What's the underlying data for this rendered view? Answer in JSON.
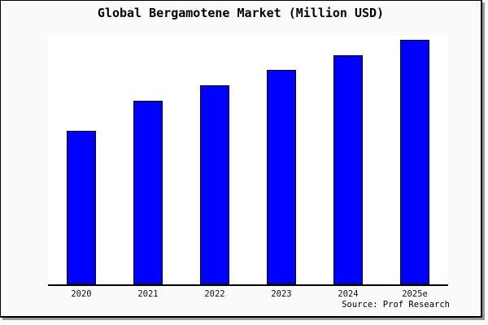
{
  "page": {
    "title": "Global Bergamotene Market (Million USD)",
    "source_note": "Source: Prof Research"
  },
  "chart_data": {
    "type": "bar",
    "title": "Global Bergamotene Market (Million USD)",
    "categories": [
      "2020",
      "2021",
      "2022",
      "2023",
      "2024",
      "2025e"
    ],
    "values": [
      189,
      226,
      245,
      264,
      282,
      301
    ],
    "values_unit": "relative bar heights in px; no y-axis scale, gridlines or data labels are shown in the chart",
    "values_pct_of_max": [
      62.8,
      75.1,
      81.4,
      87.7,
      93.7,
      100
    ],
    "xlabel": "",
    "ylabel": "",
    "grid": false,
    "legend": null,
    "axes_shown": [
      "bottom"
    ],
    "source": "Source: Prof Research",
    "colors": {
      "bar_fill": "#0000fe",
      "bar_edge": "#000000",
      "plot_background": "#ffffff",
      "outer_background": "#fafafa",
      "frame_border": "#000000",
      "frame_shadow": "#999999",
      "text": "#000000"
    }
  }
}
